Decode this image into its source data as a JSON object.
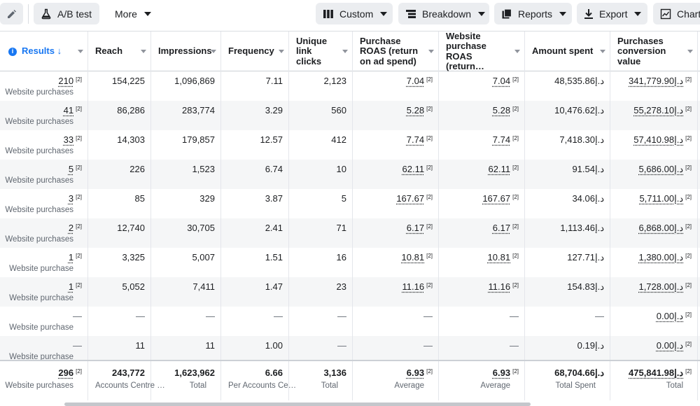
{
  "toolbar": {
    "ab_test": "A/B test",
    "more": "More",
    "custom": "Custom",
    "breakdown": "Breakdown",
    "reports": "Reports",
    "export": "Export",
    "charts": "Charts"
  },
  "columns": [
    {
      "key": "results",
      "label": "Results ↓"
    },
    {
      "key": "reach",
      "label": "Reach"
    },
    {
      "key": "impressions",
      "label": "Impressions"
    },
    {
      "key": "frequency",
      "label": "Frequency"
    },
    {
      "key": "unique",
      "label": "Unique link clicks"
    },
    {
      "key": "roas",
      "label": "Purchase ROAS (return on ad spend)"
    },
    {
      "key": "wroas",
      "label": "Website purchase ROAS (return…"
    },
    {
      "key": "amount",
      "label": "Amount spent"
    },
    {
      "key": "conv",
      "label": "Purchases conversion value"
    }
  ],
  "rows": [
    {
      "results": "210",
      "results_sub": "Website purchases",
      "reach": "154,225",
      "impressions": "1,096,869",
      "frequency": "7.11",
      "unique": "2,123",
      "roas": "7.04",
      "wroas": "7.04",
      "amount": "48,535.86د.إ",
      "conv": "341,779.90د.إ"
    },
    {
      "results": "41",
      "results_sub": "Website purchases",
      "reach": "86,286",
      "impressions": "283,774",
      "frequency": "3.29",
      "unique": "560",
      "roas": "5.28",
      "wroas": "5.28",
      "amount": "10,476.62د.إ",
      "conv": "55,278.10د.إ"
    },
    {
      "results": "33",
      "results_sub": "Website purchases",
      "reach": "14,303",
      "impressions": "179,857",
      "frequency": "12.57",
      "unique": "412",
      "roas": "7.74",
      "wroas": "7.74",
      "amount": "7,418.30د.إ",
      "conv": "57,410.98د.إ"
    },
    {
      "results": "5",
      "results_sub": "Website purchases",
      "reach": "226",
      "impressions": "1,523",
      "frequency": "6.74",
      "unique": "10",
      "roas": "62.11",
      "wroas": "62.11",
      "amount": "91.54د.إ",
      "conv": "5,686.00د.إ"
    },
    {
      "results": "3",
      "results_sub": "Website purchases",
      "reach": "85",
      "impressions": "329",
      "frequency": "3.87",
      "unique": "5",
      "roas": "167.67",
      "wroas": "167.67",
      "amount": "34.06د.إ",
      "conv": "5,711.00د.إ"
    },
    {
      "results": "2",
      "results_sub": "Website purchases",
      "reach": "12,740",
      "impressions": "30,705",
      "frequency": "2.41",
      "unique": "71",
      "roas": "6.17",
      "wroas": "6.17",
      "amount": "1,113.46د.إ",
      "conv": "6,868.00د.إ"
    },
    {
      "results": "1",
      "results_sub": "Website purchase",
      "reach": "3,325",
      "impressions": "5,007",
      "frequency": "1.51",
      "unique": "16",
      "roas": "10.81",
      "wroas": "10.81",
      "amount": "127.71د.إ",
      "conv": "1,380.00د.إ"
    },
    {
      "results": "1",
      "results_sub": "Website purchase",
      "reach": "5,052",
      "impressions": "7,411",
      "frequency": "1.47",
      "unique": "23",
      "roas": "11.16",
      "wroas": "11.16",
      "amount": "154.83د.إ",
      "conv": "1,728.00د.إ"
    },
    {
      "results": "—",
      "results_sub": "Website purchase",
      "reach": "—",
      "impressions": "—",
      "frequency": "—",
      "unique": "—",
      "roas": "—",
      "wroas": "—",
      "amount": "—",
      "conv": "0.00د.إ"
    },
    {
      "results": "—",
      "results_sub": "Website purchase",
      "reach": "11",
      "impressions": "11",
      "frequency": "1.00",
      "unique": "—",
      "roas": "—",
      "wroas": "—",
      "amount": "0.19د.إ",
      "conv": "0.00د.إ"
    }
  ],
  "sup": "[2]",
  "totals": {
    "results": "296",
    "results_sub": "Website purchases",
    "reach": "243,772",
    "reach_sub": "Accounts Centre accounts",
    "impressions": "1,623,962",
    "impressions_sub": "Total",
    "frequency": "6.66",
    "frequency_sub": "Per Accounts Centre account",
    "unique": "3,136",
    "unique_sub": "Total",
    "roas": "6.93",
    "roas_sub": "Average",
    "wroas": "6.93",
    "wroas_sub": "Average",
    "amount": "68,704.66د.إ",
    "amount_sub": "Total Spent",
    "conv": "475,841.98د.إ",
    "conv_sub": "Total"
  },
  "icons": {
    "edit": "pencil-icon",
    "ab": "flask-icon",
    "custom": "columns-icon",
    "breakdown": "breakdown-icon",
    "reports": "reports-icon",
    "export": "download-icon",
    "charts": "chart-icon",
    "info": "info-icon"
  }
}
